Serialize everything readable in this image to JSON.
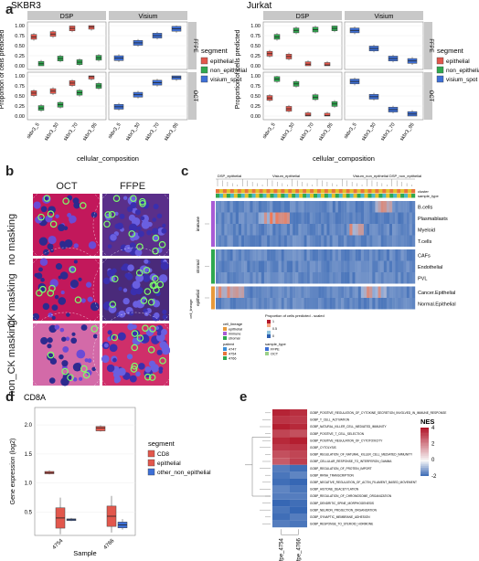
{
  "panel_letters": [
    "a",
    "b",
    "c",
    "d",
    "e"
  ],
  "colors": {
    "epithelial": "#e2574c",
    "non_epithelial": "#2fa84f",
    "visium_spot": "#3d6fd6",
    "cd8": "#e2574c",
    "other_non_epithelial": "#3d6fd6",
    "heat_high": "#b2182b",
    "heat_low": "#2c5fb0",
    "strip_bg": "#c8c8c8"
  },
  "panel_a": {
    "strip_dsp": "DSP",
    "strip_visium": "Visium",
    "row_ffpe": "FFPE",
    "row_oct": "OCT",
    "ylabel": "Proportion of cells predicted",
    "xlabel": "cellular_composition",
    "yticks": [
      "0.00",
      "0.25",
      "0.50",
      "0.75",
      "1.00"
    ],
    "legend_title": "segment",
    "legend_items": [
      "epithelial",
      "non_epithelial",
      "visium_spot"
    ],
    "plots": [
      {
        "title": "SKBR3",
        "categories": [
          "skbr3_5",
          "skbr3_30",
          "skbr3_70",
          "skbr3_95"
        ]
      },
      {
        "title": "Jurkat",
        "categories": [
          "skbr3_5",
          "skbr3_30",
          "skbr3_70",
          "skbr3_95"
        ]
      }
    ]
  },
  "panel_b": {
    "col_headers": [
      "OCT",
      "FFPE"
    ],
    "row_labels": [
      "no masking",
      "CK masking",
      "non_CK masking"
    ]
  },
  "panel_c": {
    "top_groups": [
      "DSP_epithelial",
      "Visium_epithelial",
      "Visium_non_epithelial",
      "DSP_non_epithelial"
    ],
    "top_tracks": [
      "cluster",
      "sample_type"
    ],
    "row_labels": [
      "B.cells",
      "Plasmablasts",
      "Myeloid",
      "T.cells",
      "CAFs",
      "Endothelial",
      "PVL",
      "Cancer.Epithelial",
      "Normal.Epithelial"
    ],
    "lineages": [
      "immune",
      "stromal",
      "epithelial"
    ],
    "left_label": "cell_lineage",
    "legend": {
      "cell_lineage_title": "cell_lineage",
      "cell_lineage_items": [
        "epithelial",
        "immune",
        "stromal"
      ],
      "proportion_title": "Proportion of cells predicted - scaled",
      "proportion_ticks": [
        "1",
        "0.5",
        "0"
      ],
      "patient_title": "patient",
      "patient_items": [
        "4747",
        "4754",
        "4766"
      ],
      "sample_type_title": "sample_type",
      "sample_type_items": [
        "FFPE",
        "OCT"
      ]
    }
  },
  "panel_d": {
    "title": "CD8A",
    "ylabel": "Gene expression (log2)",
    "xlabel": "Sample",
    "yticks": [
      "0.5",
      "1.0",
      "1.5",
      "2.0"
    ],
    "categories": [
      "4754",
      "4766"
    ],
    "legend_title": "segment",
    "legend_items": [
      "CD8",
      "epithelial",
      "other_non_epithelial"
    ]
  },
  "panel_e": {
    "columns": [
      "ffpe_4754",
      "ffpe_4766"
    ],
    "legend_title": "NES",
    "legend_ticks": [
      "4",
      "2",
      "0",
      "-2"
    ],
    "terms": [
      "GOBP_POSITIVE_REGULATION_OF_CYTOKINE_SECRETION_INVOLVED_IN_IMMUNE_RESPONSE",
      "GOBP_T_CELL_ACTIVATION",
      "GOBP_NATURAL_KILLER_CELL_MEDIATED_IMMUNITY",
      "GOBP_POSITIVE_T_CELL_SELECTION",
      "GOBP_POSITIVE_REGULATION_OF_CYTOTOXICITY",
      "GOBP_CYTOLYSIS",
      "GOBP_REGULATION_OF_NATURAL_KILLER_CELL_MEDIATED_IMMUNITY",
      "GOBP_CELLULAR_RESPONSE_TO_INTERFERON_GAMMA",
      "GOBP_REGULATION_OF_PROTEIN_IMPORT",
      "GOBP_RRNA_TRANSCRIPTION",
      "GOBP_NEGATIVE_REGULATION_OF_ACTIN_FILAMENT_BASED_MOVEMENT",
      "GOBP_HISTONE_DEACETYLATION",
      "GOBP_REGULATION_OF_CHROMOSOME_ORGANIZATION",
      "GOBP_DENDRITIC_SPINE_MORPHOGENESIS",
      "GOBP_NEURON_PROJECTION_ORGANIZATION",
      "GOBP_SYNAPTIC_MEMBRANE_ADHESION",
      "GOBP_RESPONSE_TO_STEROID_HORMONE"
    ],
    "values": [
      [
        3.8,
        3.6
      ],
      [
        3.5,
        3.4
      ],
      [
        3.9,
        3.7
      ],
      [
        3.2,
        3.0
      ],
      [
        3.7,
        3.9
      ],
      [
        3.4,
        3.5
      ],
      [
        3.0,
        3.2
      ],
      [
        2.8,
        3.3
      ],
      [
        -1.6,
        -1.8
      ],
      [
        -1.7,
        -1.5
      ],
      [
        -1.8,
        -1.9
      ],
      [
        -1.5,
        -1.7
      ],
      [
        -1.6,
        -1.6
      ],
      [
        -1.9,
        -1.8
      ],
      [
        -1.7,
        -1.9
      ],
      [
        -1.8,
        -1.6
      ],
      [
        -1.6,
        -1.7
      ]
    ]
  },
  "chart_data": [
    {
      "type": "box",
      "title": "SKBR3",
      "xlabel": "cellular_composition",
      "ylabel": "Proportion of cells predicted",
      "categories": [
        "skbr3_5",
        "skbr3_30",
        "skbr3_70",
        "skbr3_95"
      ],
      "ylim": [
        0,
        1
      ],
      "facets": [
        {
          "row": "FFPE",
          "col": "DSP",
          "series": [
            {
              "name": "epithelial",
              "medians": [
                0.72,
                0.79,
                0.93,
                0.97
              ]
            },
            {
              "name": "non_epithelial",
              "medians": [
                0.05,
                0.18,
                0.09,
                0.2
              ]
            }
          ]
        },
        {
          "row": "FFPE",
          "col": "Visium",
          "series": [
            {
              "name": "visium_spot",
              "medians": [
                0.19,
                0.57,
                0.75,
                0.92
              ]
            }
          ]
        },
        {
          "row": "OCT",
          "col": "DSP",
          "series": [
            {
              "name": "epithelial",
              "medians": [
                0.57,
                0.62,
                0.82,
                0.98
              ]
            },
            {
              "name": "non_epithelial",
              "medians": [
                0.2,
                0.28,
                0.58,
                0.75
              ]
            }
          ]
        },
        {
          "row": "OCT",
          "col": "Visium",
          "series": [
            {
              "name": "visium_spot",
              "medians": [
                0.23,
                0.53,
                0.83,
                0.97
              ]
            }
          ]
        }
      ]
    },
    {
      "type": "box",
      "title": "Jurkat",
      "xlabel": "cellular_composition",
      "ylabel": "Proportion of cells predicted",
      "categories": [
        "skbr3_5",
        "skbr3_30",
        "skbr3_70",
        "skbr3_95"
      ],
      "ylim": [
        0,
        1
      ],
      "facets": [
        {
          "row": "FFPE",
          "col": "DSP",
          "series": [
            {
              "name": "epithelial",
              "medians": [
                0.3,
                0.23,
                0.04,
                0.02
              ]
            },
            {
              "name": "non_epithelial",
              "medians": [
                0.72,
                0.88,
                0.9,
                0.93
              ]
            }
          ]
        },
        {
          "row": "FFPE",
          "col": "Visium",
          "series": [
            {
              "name": "visium_spot",
              "medians": [
                0.88,
                0.43,
                0.18,
                0.12
              ]
            }
          ]
        },
        {
          "row": "OCT",
          "col": "DSP",
          "series": [
            {
              "name": "epithelial",
              "medians": [
                0.45,
                0.18,
                0.02,
                0.01
              ]
            },
            {
              "name": "non_epithelial",
              "medians": [
                0.92,
                0.8,
                0.47,
                0.3
              ]
            }
          ]
        },
        {
          "row": "OCT",
          "col": "Visium",
          "series": [
            {
              "name": "visium_spot",
              "medians": [
                0.86,
                0.48,
                0.16,
                0.05
              ]
            }
          ]
        }
      ]
    },
    {
      "type": "box",
      "title": "CD8A",
      "xlabel": "Sample",
      "ylabel": "Gene expression (log2)",
      "categories": [
        "4754",
        "4766"
      ],
      "ylim": [
        0.1,
        2.3
      ],
      "series": [
        {
          "name": "CD8",
          "medians": [
            1.18,
            1.95
          ]
        },
        {
          "name": "epithelial",
          "medians": [
            0.4,
            0.43
          ]
        },
        {
          "name": "other_non_epithelial",
          "medians": [
            0.37,
            0.28
          ]
        }
      ]
    }
  ]
}
